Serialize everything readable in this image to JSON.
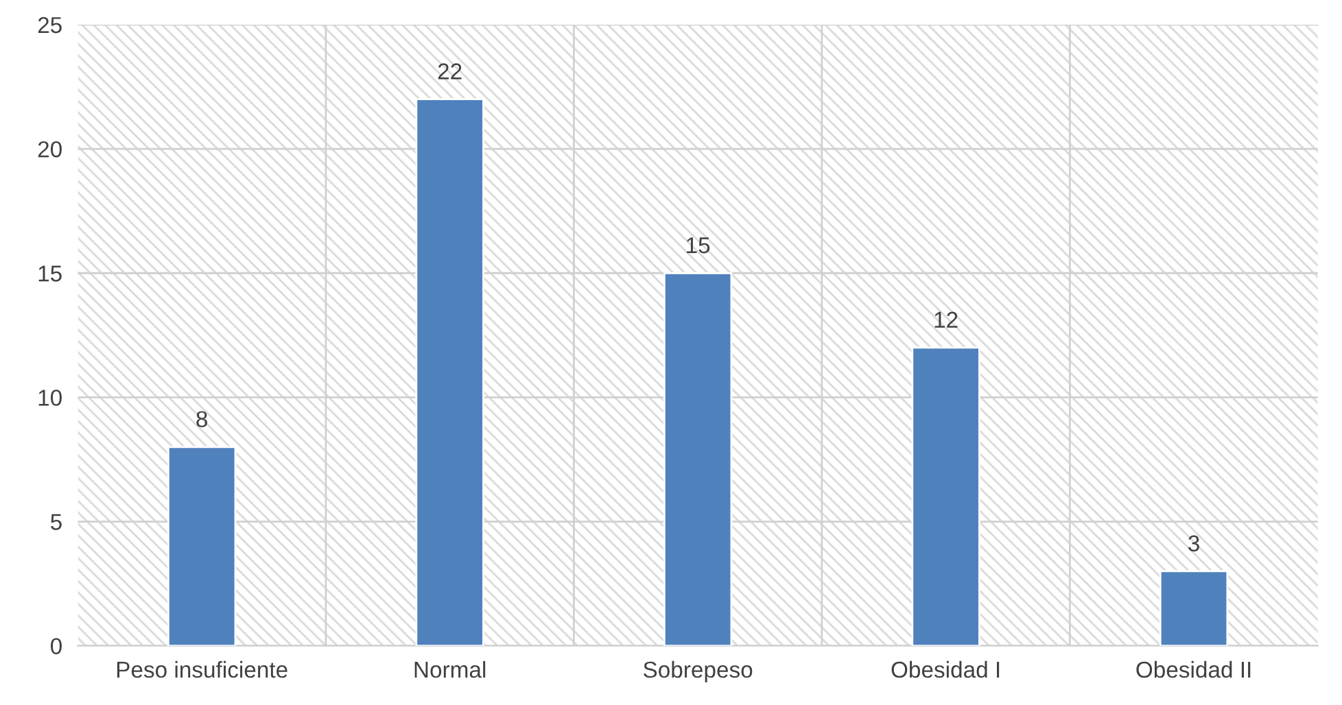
{
  "chart_data": {
    "type": "bar",
    "categories": [
      "Peso insuficiente",
      "Normal",
      "Sobrepeso",
      "Obesidad I",
      "Obesidad II"
    ],
    "values": [
      8,
      22,
      15,
      12,
      3
    ],
    "color": "#4f81bd",
    "ylim": [
      0,
      25
    ],
    "yticks": [
      0,
      5,
      10,
      15,
      20,
      25
    ],
    "grid": true,
    "data_labels": true
  }
}
